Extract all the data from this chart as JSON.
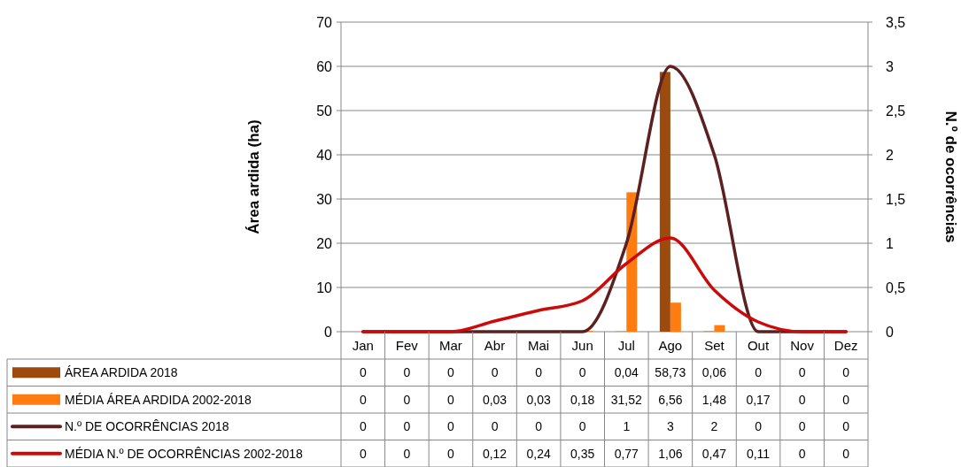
{
  "chart_data": {
    "type": "bar",
    "categories": [
      "Jan",
      "Fev",
      "Mar",
      "Abr",
      "Mai",
      "Jun",
      "Jul",
      "Ago",
      "Set",
      "Out",
      "Nov",
      "Dez"
    ],
    "ylabel": "Área ardida (ha)",
    "y2label": "N.º de ocorrências",
    "ylim": [
      0,
      70
    ],
    "yticks": [
      0,
      10,
      20,
      30,
      40,
      50,
      60,
      70
    ],
    "y2lim": [
      0,
      3.5
    ],
    "y2ticks": [
      0,
      {
        "value": 0.5,
        "label": "0,5"
      },
      1,
      {
        "value": 1.5,
        "label": "1,5"
      },
      2,
      {
        "value": 2.5,
        "label": "2,5"
      },
      3,
      {
        "value": 3.5,
        "label": "3,5"
      }
    ],
    "grid": "y",
    "legend": "bottom",
    "series": [
      {
        "name": "ÁREA ARDIDA 2018",
        "color": "#9c4a0e",
        "values": [
          0,
          0,
          0,
          0,
          0,
          0,
          0.04,
          58.73,
          0.06,
          0,
          0,
          0
        ],
        "value_labels": [
          "0",
          "0",
          "0",
          "0",
          "0",
          "0",
          "0,04",
          "58,73",
          "0,06",
          "0",
          "0",
          "0"
        ]
      },
      {
        "name": "MÉDIA ÁREA ARDIDA 2002-2018",
        "color": "#ff7c10",
        "values": [
          0,
          0,
          0,
          0.03,
          0.03,
          0.18,
          31.52,
          6.56,
          1.48,
          0.17,
          0,
          0
        ],
        "value_labels": [
          "0",
          "0",
          "0",
          "0,03",
          "0,03",
          "0,18",
          "31,52",
          "6,56",
          "1,48",
          "0,17",
          "0",
          "0"
        ]
      },
      {
        "name": "N.º DE OCORRÊNCIAS 2018",
        "type": "line",
        "axis": "y2",
        "color": "#5c2020",
        "values": [
          0,
          0,
          0,
          0,
          0,
          0,
          1,
          3,
          2,
          0,
          0,
          0
        ],
        "value_labels": [
          "0",
          "0",
          "0",
          "0",
          "0",
          "0",
          "1",
          "3",
          "2",
          "0",
          "0",
          "0"
        ]
      },
      {
        "name": "MÉDIA N.º DE OCORRÊNCIAS 2002-2018",
        "type": "line",
        "axis": "y2",
        "color": "#cc0a0a",
        "values": [
          0,
          0,
          0,
          0.12,
          0.24,
          0.35,
          0.77,
          1.06,
          0.47,
          0.11,
          0,
          0
        ],
        "value_labels": [
          "0",
          "0",
          "0",
          "0,12",
          "0,24",
          "0,35",
          "0,77",
          "1,06",
          "0,47",
          "0,11",
          "0",
          "0"
        ]
      }
    ]
  }
}
